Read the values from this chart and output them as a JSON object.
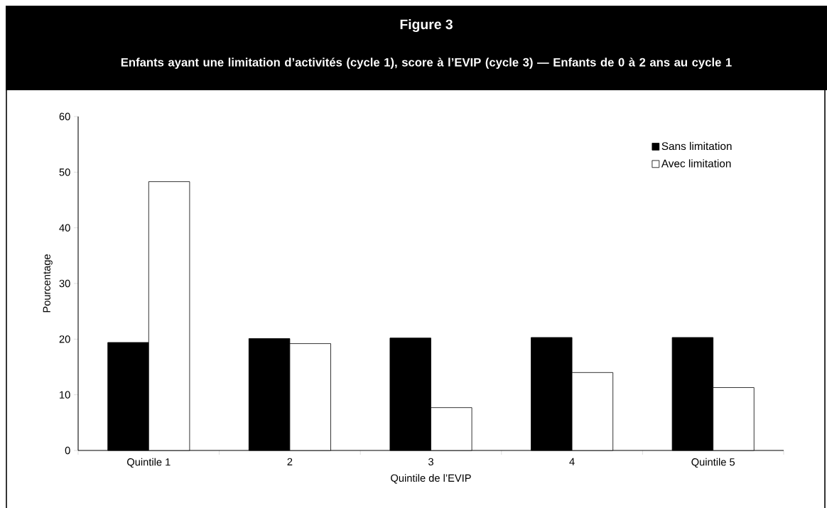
{
  "chart_data": {
    "type": "bar",
    "title": "Figure 3",
    "subtitle": "Enfants ayant une limitation d’activités (cycle 1), score à l’EVIP (cycle 3) — Enfants de 0 à 2 ans au cycle 1",
    "xlabel": "Quintile de l’EVIP",
    "ylabel": "Pourcentage",
    "categories": [
      "Quintile 1",
      "2",
      "3",
      "4",
      "Quintile 5"
    ],
    "series": [
      {
        "name": "Sans limitation",
        "color": "#000000",
        "values": [
          19.4,
          20.1,
          20.2,
          20.3,
          20.3
        ]
      },
      {
        "name": "Avec limitation",
        "color": "#ffffff",
        "values": [
          48.3,
          19.2,
          7.7,
          14.0,
          11.3
        ]
      }
    ],
    "ylim": [
      0,
      60
    ],
    "yticks": [
      0,
      10,
      20,
      30,
      40,
      50,
      60
    ],
    "legend": "top right"
  }
}
